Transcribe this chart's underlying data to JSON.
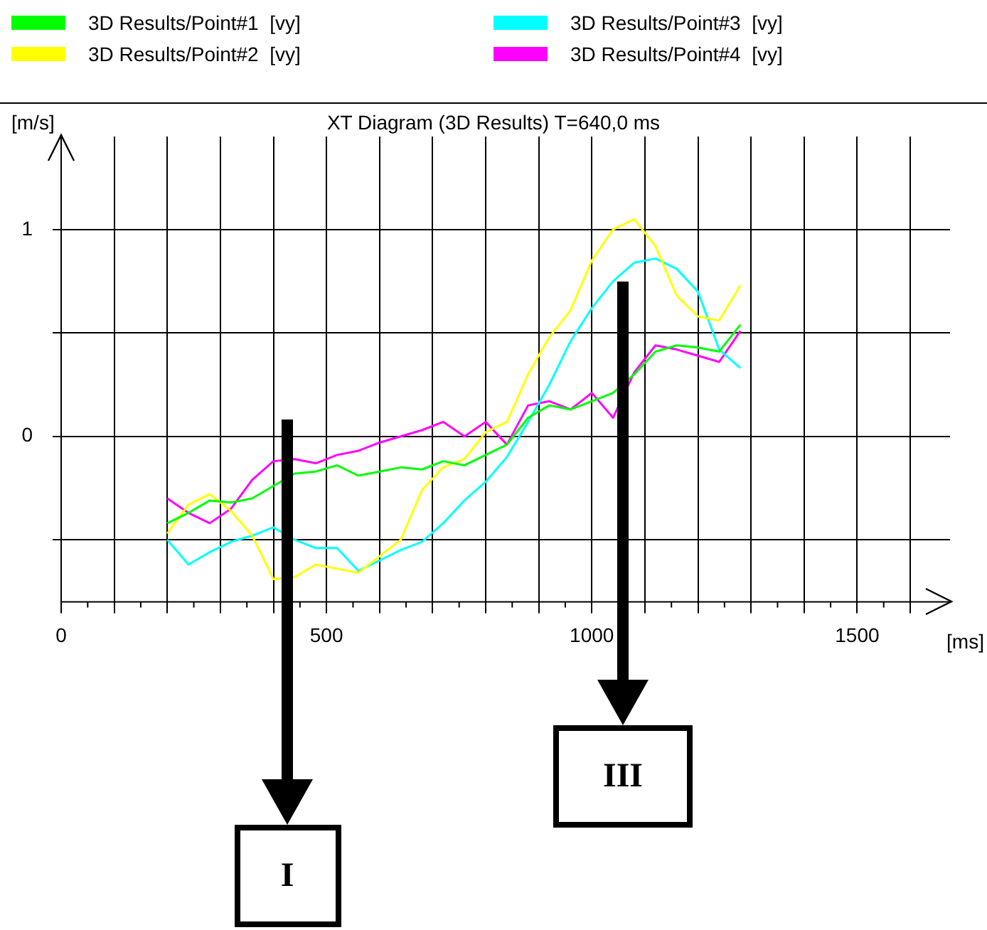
{
  "chart_data": {
    "type": "line",
    "title": "XT Diagram (3D Results) T=640,0 ms",
    "ylabel": "[m/s]",
    "xlabel": "[ms]",
    "x": [
      200,
      240,
      280,
      320,
      360,
      400,
      440,
      480,
      520,
      560,
      600,
      640,
      680,
      720,
      760,
      800,
      840,
      880,
      920,
      960,
      1000,
      1040,
      1080,
      1120,
      1160,
      1200,
      1240,
      1280
    ],
    "series": [
      {
        "name": "3D Results/Point#1  [vy]",
        "color": "#00ff00",
        "values": [
          -0.42,
          -0.37,
          -0.31,
          -0.32,
          -0.3,
          -0.24,
          -0.18,
          -0.17,
          -0.14,
          -0.19,
          -0.17,
          -0.15,
          -0.16,
          -0.12,
          -0.14,
          -0.09,
          -0.04,
          0.09,
          0.15,
          0.13,
          0.17,
          0.21,
          0.3,
          0.41,
          0.44,
          0.43,
          0.41,
          0.54
        ]
      },
      {
        "name": "3D Results/Point#2  [vy]",
        "color": "#ffff00",
        "values": [
          -0.47,
          -0.33,
          -0.28,
          -0.36,
          -0.48,
          -0.69,
          -0.68,
          -0.62,
          -0.64,
          -0.66,
          -0.58,
          -0.5,
          -0.26,
          -0.15,
          -0.11,
          0.02,
          0.07,
          0.3,
          0.48,
          0.61,
          0.85,
          1.0,
          1.05,
          0.92,
          0.68,
          0.58,
          0.56,
          0.73
        ]
      },
      {
        "name": "3D Results/Point#3  [vy]",
        "color": "#00ffff",
        "values": [
          -0.5,
          -0.62,
          -0.56,
          -0.51,
          -0.48,
          -0.44,
          -0.5,
          -0.54,
          -0.54,
          -0.65,
          -0.6,
          -0.55,
          -0.51,
          -0.42,
          -0.31,
          -0.22,
          -0.1,
          0.07,
          0.25,
          0.46,
          0.62,
          0.75,
          0.84,
          0.86,
          0.81,
          0.7,
          0.42,
          0.33
        ]
      },
      {
        "name": "3D Results/Point#4  [vy]",
        "color": "#ff00ff",
        "values": [
          -0.3,
          -0.37,
          -0.42,
          -0.35,
          -0.21,
          -0.12,
          -0.11,
          -0.13,
          -0.09,
          -0.07,
          -0.03,
          0.0,
          0.03,
          0.07,
          0.0,
          0.07,
          -0.04,
          0.15,
          0.17,
          0.13,
          0.21,
          0.09,
          0.31,
          0.44,
          0.42,
          0.39,
          0.36,
          0.51
        ]
      }
    ],
    "xlim": [
      0,
      1675
    ],
    "ylim": [
      -0.8,
      1.45
    ],
    "xticks": [
      0,
      {
        "value": 100,
        "label": null
      },
      {
        "value": 200,
        "label": null
      },
      {
        "value": 300,
        "label": null
      },
      {
        "value": 400,
        "label": null
      },
      500,
      {
        "value": 600,
        "label": null
      },
      {
        "value": 700,
        "label": null
      },
      {
        "value": 800,
        "label": null
      },
      {
        "value": 900,
        "label": null
      },
      1000,
      {
        "value": 1100,
        "label": null
      },
      {
        "value": 1200,
        "label": null
      },
      {
        "value": 1300,
        "label": null
      },
      {
        "value": 1400,
        "label": null
      },
      1500,
      {
        "value": 1600,
        "label": null
      }
    ],
    "yticks": [
      {
        "value": -0.5,
        "label": null
      },
      0,
      {
        "value": 0.5,
        "label": null
      },
      1
    ],
    "grid": true,
    "legend": "top",
    "marker": "none",
    "line_style": "solid",
    "annotations": [
      "I",
      "III"
    ]
  }
}
